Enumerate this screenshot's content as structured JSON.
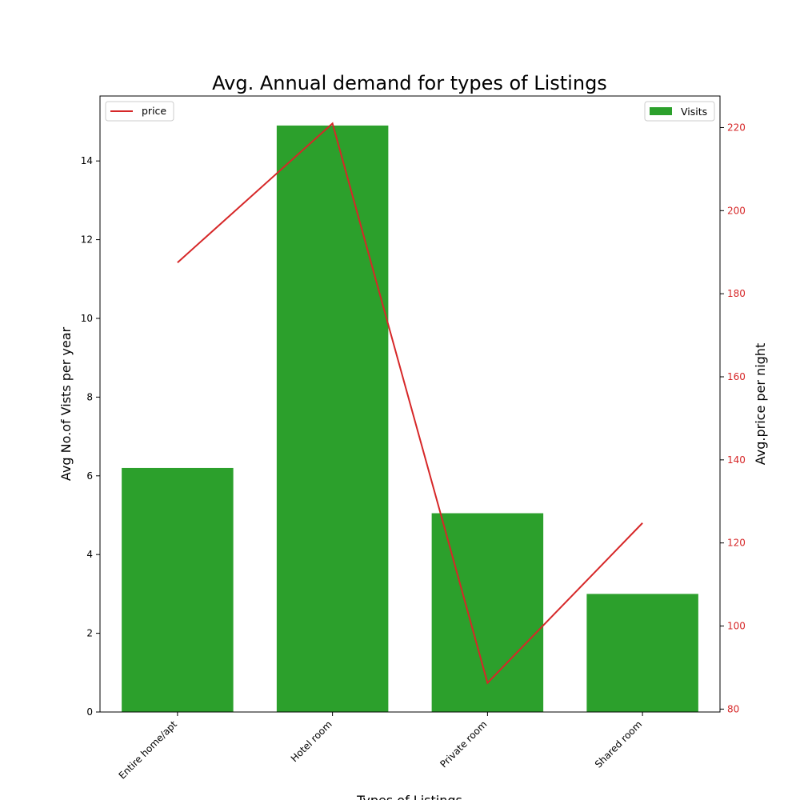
{
  "chart_data": {
    "type": "bar",
    "title": "Avg. Annual demand for types of Listings",
    "xlabel": "Types of Listings",
    "ylabel": "Avg No.of Vists per year",
    "y2label": "Avg.price per night",
    "categories": [
      "Entire home/apt",
      "Hotel room",
      "Private room",
      "Shared room"
    ],
    "series": [
      {
        "name": "Visits",
        "type": "bar",
        "axis": "left",
        "color": "#2ca02c",
        "values": [
          6.2,
          14.9,
          5.05,
          3.0
        ]
      },
      {
        "name": "price",
        "type": "line",
        "axis": "right",
        "color": "#d62728",
        "values": [
          187.5,
          221.0,
          86.3,
          124.8
        ]
      }
    ],
    "ylim": [
      0,
      15.65
    ],
    "y2lim": [
      79.3,
      227.6
    ],
    "yticks": [
      0,
      2,
      4,
      6,
      8,
      10,
      12,
      14
    ],
    "y2ticks": [
      80,
      100,
      120,
      140,
      160,
      180,
      200,
      220
    ],
    "legend_bar_position": "upper right",
    "legend_line_position": "upper left",
    "grid": false,
    "right_axis_color": "#d62728"
  }
}
